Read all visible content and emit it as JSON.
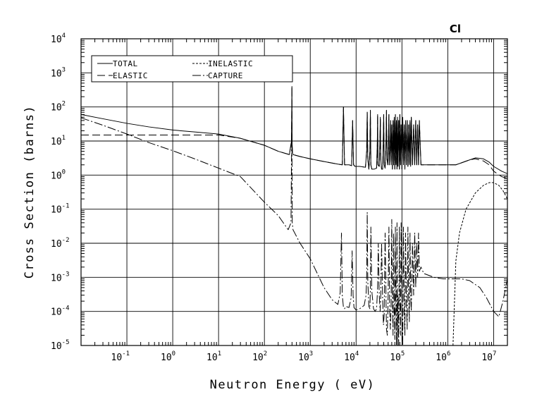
{
  "chart_data": {
    "type": "line",
    "title": "Cl",
    "xlabel": "Neutron Energy ( eV)",
    "ylabel": "Cross Section (barns)",
    "x_scale": "log",
    "y_scale": "log",
    "xlim": [
      0.01,
      20000000
    ],
    "ylim": [
      1e-05,
      10000
    ],
    "grid": true,
    "legend_position": "top-left",
    "x_ticks": [
      {
        "mantissa": "10",
        "exponent": "-1",
        "value": 0.1
      },
      {
        "mantissa": "10",
        "exponent": "0",
        "value": 1
      },
      {
        "mantissa": "10",
        "exponent": "1",
        "value": 10
      },
      {
        "mantissa": "10",
        "exponent": "2",
        "value": 100
      },
      {
        "mantissa": "10",
        "exponent": "3",
        "value": 1000
      },
      {
        "mantissa": "10",
        "exponent": "4",
        "value": 10000
      },
      {
        "mantissa": "10",
        "exponent": "5",
        "value": 100000
      },
      {
        "mantissa": "10",
        "exponent": "6",
        "value": 1000000
      },
      {
        "mantissa": "10",
        "exponent": "7",
        "value": 10000000
      }
    ],
    "y_ticks": [
      {
        "mantissa": "10",
        "exponent": "-5",
        "value": 1e-05
      },
      {
        "mantissa": "10",
        "exponent": "-4",
        "value": 0.0001
      },
      {
        "mantissa": "10",
        "exponent": "-3",
        "value": 0.001
      },
      {
        "mantissa": "10",
        "exponent": "-2",
        "value": 0.01
      },
      {
        "mantissa": "10",
        "exponent": "-1",
        "value": 0.1
      },
      {
        "mantissa": "10",
        "exponent": "0",
        "value": 1
      },
      {
        "mantissa": "10",
        "exponent": "1",
        "value": 10
      },
      {
        "mantissa": "10",
        "exponent": "2",
        "value": 100
      },
      {
        "mantissa": "10",
        "exponent": "3",
        "value": 1000
      },
      {
        "mantissa": "10",
        "exponent": "4",
        "value": 10000
      }
    ],
    "series": [
      {
        "name": "TOTAL",
        "dash": "solid",
        "x": [
          0.01,
          0.03,
          0.1,
          0.3,
          1,
          3,
          10,
          30,
          100,
          200,
          350,
          390,
          398,
          400,
          402,
          410,
          420,
          600,
          1000,
          2000,
          4000,
          5000,
          5300,
          5600,
          7000,
          8000,
          8400,
          8800,
          9500,
          12000,
          16000,
          17000,
          17500,
          18000,
          19000,
          20000,
          20500,
          21000,
          22000,
          25000,
          28000,
          29000,
          29500,
          30000,
          32000,
          33000,
          33800,
          34500,
          36000,
          38000,
          39000,
          40000,
          41000,
          43000,
          45000,
          46000,
          47000,
          49000,
          51000,
          52000,
          53000,
          55000,
          57000,
          58000,
          60000,
          62000,
          64000,
          66000,
          68000,
          70000,
          72000,
          74000,
          76000,
          78000,
          80000,
          82000,
          85000,
          88000,
          90000,
          93000,
          96000,
          100000,
          104000,
          108000,
          112000,
          116000,
          120000,
          125000,
          130000,
          135000,
          140000,
          145000,
          150000,
          155000,
          160000,
          170000,
          180000,
          190000,
          200000,
          210000,
          220000,
          230000,
          240000,
          260000,
          400000,
          700000,
          1000000,
          1500000,
          2000000,
          3000000,
          4000000,
          6000000,
          8000000,
          10000000,
          15000000,
          20000000
        ],
        "y": [
          60,
          45,
          33,
          26,
          21,
          18.5,
          16,
          12,
          7.5,
          5,
          4,
          10,
          400,
          50,
          8,
          4.5,
          4,
          3.5,
          3,
          2.5,
          2.1,
          2.0,
          100,
          2.0,
          2.0,
          1.9,
          40,
          2.0,
          1.8,
          1.8,
          1.7,
          5,
          70,
          3,
          1.5,
          5,
          80,
          2,
          1.5,
          1.5,
          1.6,
          8,
          60,
          2,
          1.8,
          8,
          50,
          3,
          1.5,
          1.5,
          8,
          60,
          2,
          1.6,
          10,
          80,
          3,
          2,
          15,
          60,
          2,
          5,
          40,
          2,
          30,
          1.5,
          40,
          2,
          50,
          1.5,
          60,
          2,
          40,
          1.5,
          50,
          1.8,
          40,
          1.5,
          60,
          2,
          30,
          1.5,
          50,
          2,
          30,
          1.5,
          40,
          2,
          40,
          1.8,
          30,
          2,
          40,
          1.8,
          50,
          2,
          30,
          2,
          40,
          2,
          30,
          2,
          40,
          2.0,
          2.0,
          2.0,
          2.0,
          2.0,
          2.3,
          2.8,
          3.2,
          3.0,
          2.4,
          1.8,
          1.3,
          1.1
        ]
      },
      {
        "name": "ELASTIC",
        "dash": "long-dash",
        "x": [
          0.01,
          0.1,
          1,
          10,
          30,
          100,
          200,
          350,
          390,
          398,
          400,
          402,
          410,
          420,
          600,
          1000,
          2000,
          4000,
          5000,
          5300,
          5600,
          7000,
          8000,
          8400,
          8800,
          9500,
          12000,
          16000,
          17000,
          17500,
          18000,
          19000,
          20000,
          20500,
          21000,
          22000,
          25000,
          28000,
          29000,
          29500,
          30000,
          32000,
          33000,
          33800,
          34500,
          36000,
          38000,
          39000,
          40000,
          41000,
          43000,
          45000,
          46000,
          47000,
          49000,
          51000,
          52000,
          53000,
          55000,
          57000,
          58000,
          60000,
          62000,
          64000,
          66000,
          68000,
          70000,
          72000,
          74000,
          76000,
          78000,
          80000,
          82000,
          85000,
          88000,
          90000,
          93000,
          96000,
          100000,
          104000,
          108000,
          112000,
          116000,
          120000,
          125000,
          130000,
          135000,
          140000,
          145000,
          150000,
          155000,
          160000,
          170000,
          180000,
          190000,
          200000,
          210000,
          220000,
          230000,
          240000,
          260000,
          400000,
          700000,
          1000000,
          1500000,
          2000000,
          3000000,
          4000000,
          6000000,
          8000000,
          10000000,
          15000000,
          20000000
        ],
        "y": [
          15,
          15,
          15,
          15,
          12,
          7.5,
          5,
          4,
          10,
          400,
          50,
          8,
          4.5,
          4,
          3.5,
          3,
          2.5,
          2.1,
          2.0,
          100,
          2.0,
          2.0,
          1.9,
          40,
          2.0,
          1.8,
          1.8,
          1.7,
          5,
          70,
          3,
          1.5,
          5,
          80,
          2,
          1.5,
          1.5,
          1.6,
          8,
          60,
          2,
          1.8,
          8,
          50,
          3,
          1.5,
          1.5,
          8,
          60,
          2,
          1.6,
          10,
          80,
          3,
          2,
          15,
          60,
          2,
          5,
          40,
          2,
          30,
          1.5,
          40,
          2,
          50,
          1.5,
          60,
          2,
          40,
          1.5,
          50,
          1.8,
          40,
          1.5,
          60,
          2,
          30,
          1.5,
          50,
          2,
          30,
          1.5,
          40,
          2,
          40,
          1.8,
          30,
          2,
          40,
          1.8,
          50,
          2,
          30,
          2,
          40,
          2,
          30,
          2,
          40,
          2.0,
          2.0,
          2.0,
          2.0,
          2.0,
          2.3,
          2.8,
          3.0,
          2.6,
          2.0,
          1.3,
          0.9,
          0.8
        ]
      },
      {
        "name": "INELASTIC",
        "dash": "short-dash",
        "x": [
          1300000,
          1500000,
          1800000,
          2500000,
          4000000,
          6000000,
          8000000,
          10000000,
          13000000,
          16000000,
          20000000
        ],
        "y": [
          1e-05,
          0.003,
          0.02,
          0.1,
          0.3,
          0.5,
          0.6,
          0.6,
          0.5,
          0.35,
          0.2
        ]
      },
      {
        "name": "CAPTURE",
        "dash": "dash-dot",
        "x": [
          0.01,
          0.03,
          0.1,
          0.3,
          1,
          3,
          10,
          30,
          100,
          200,
          330,
          380,
          395,
          400,
          405,
          420,
          600,
          1000,
          2000,
          3000,
          4000,
          4500,
          4800,
          5000,
          5300,
          5600,
          6000,
          7000,
          7800,
          8200,
          8600,
          9000,
          10000,
          12000,
          15000,
          16500,
          17000,
          17500,
          18000,
          19000,
          20000,
          20500,
          21000,
          22000,
          24000,
          26000,
          28000,
          29500,
          30500,
          32000,
          33500,
          34500,
          36000,
          38000,
          39500,
          41000,
          43000,
          45000,
          46000,
          48000,
          50000,
          52000,
          54000,
          56000,
          58000,
          60000,
          62000,
          64000,
          66000,
          68000,
          70000,
          72000,
          74000,
          76000,
          78000,
          80000,
          82000,
          85000,
          88000,
          90000,
          93000,
          96000,
          100000,
          104000,
          108000,
          112000,
          116000,
          120000,
          125000,
          130000,
          135000,
          140000,
          145000,
          150000,
          155000,
          160000,
          170000,
          180000,
          190000,
          200000,
          210000,
          220000,
          230000,
          240000,
          260000,
          300000,
          500000,
          800000,
          1000000,
          1300000,
          2000000,
          3000000,
          5000000,
          7000000,
          10000000,
          13000000,
          16000000,
          20000000
        ],
        "y": [
          48,
          29,
          16,
          9,
          5.2,
          3,
          1.6,
          0.9,
          0.16,
          0.065,
          0.025,
          0.04,
          30,
          2,
          0.04,
          0.025,
          0.01,
          0.0035,
          0.0005,
          0.00022,
          0.00016,
          0.00035,
          0.02,
          0.0003,
          0.00013,
          0.00012,
          0.00014,
          0.00013,
          0.00025,
          0.006,
          0.0003,
          0.00013,
          0.00011,
          0.00012,
          0.00015,
          0.0003,
          0.001,
          0.08,
          0.0008,
          0.00014,
          0.00012,
          0.0005,
          0.03,
          0.0004,
          0.00012,
          0.0001,
          0.00012,
          0.0005,
          0.01,
          0.0003,
          0.0001,
          0.0003,
          0.01,
          0.0002,
          4e-05,
          8e-05,
          0.02,
          0.0002,
          3e-05,
          2e-05,
          0.0003,
          0.03,
          0.0001,
          3e-05,
          0.00015,
          0.05,
          0.0002,
          2e-05,
          0.02,
          0.0001,
          1.5e-05,
          0.03,
          0.0001,
          1e-05,
          0.04,
          1e-05,
          0.0003,
          1e-05,
          0.03,
          0.0002,
          2e-05,
          0.04,
          8e-05,
          1e-05,
          0.03,
          0.0001,
          2e-05,
          0.02,
          0.0002,
          3e-05,
          0.03,
          0.0003,
          5e-05,
          0.02,
          0.0003,
          0.0001,
          0.01,
          0.0003,
          0.02,
          0.0005,
          0.01,
          0.001,
          0.02,
          0.0015,
          0.002,
          0.0013,
          0.001,
          0.0009,
          0.0009,
          0.0009,
          0.0009,
          0.0008,
          0.0005,
          0.00025,
          0.0001,
          7e-05,
          0.0002,
          0.0009
        ]
      }
    ]
  }
}
